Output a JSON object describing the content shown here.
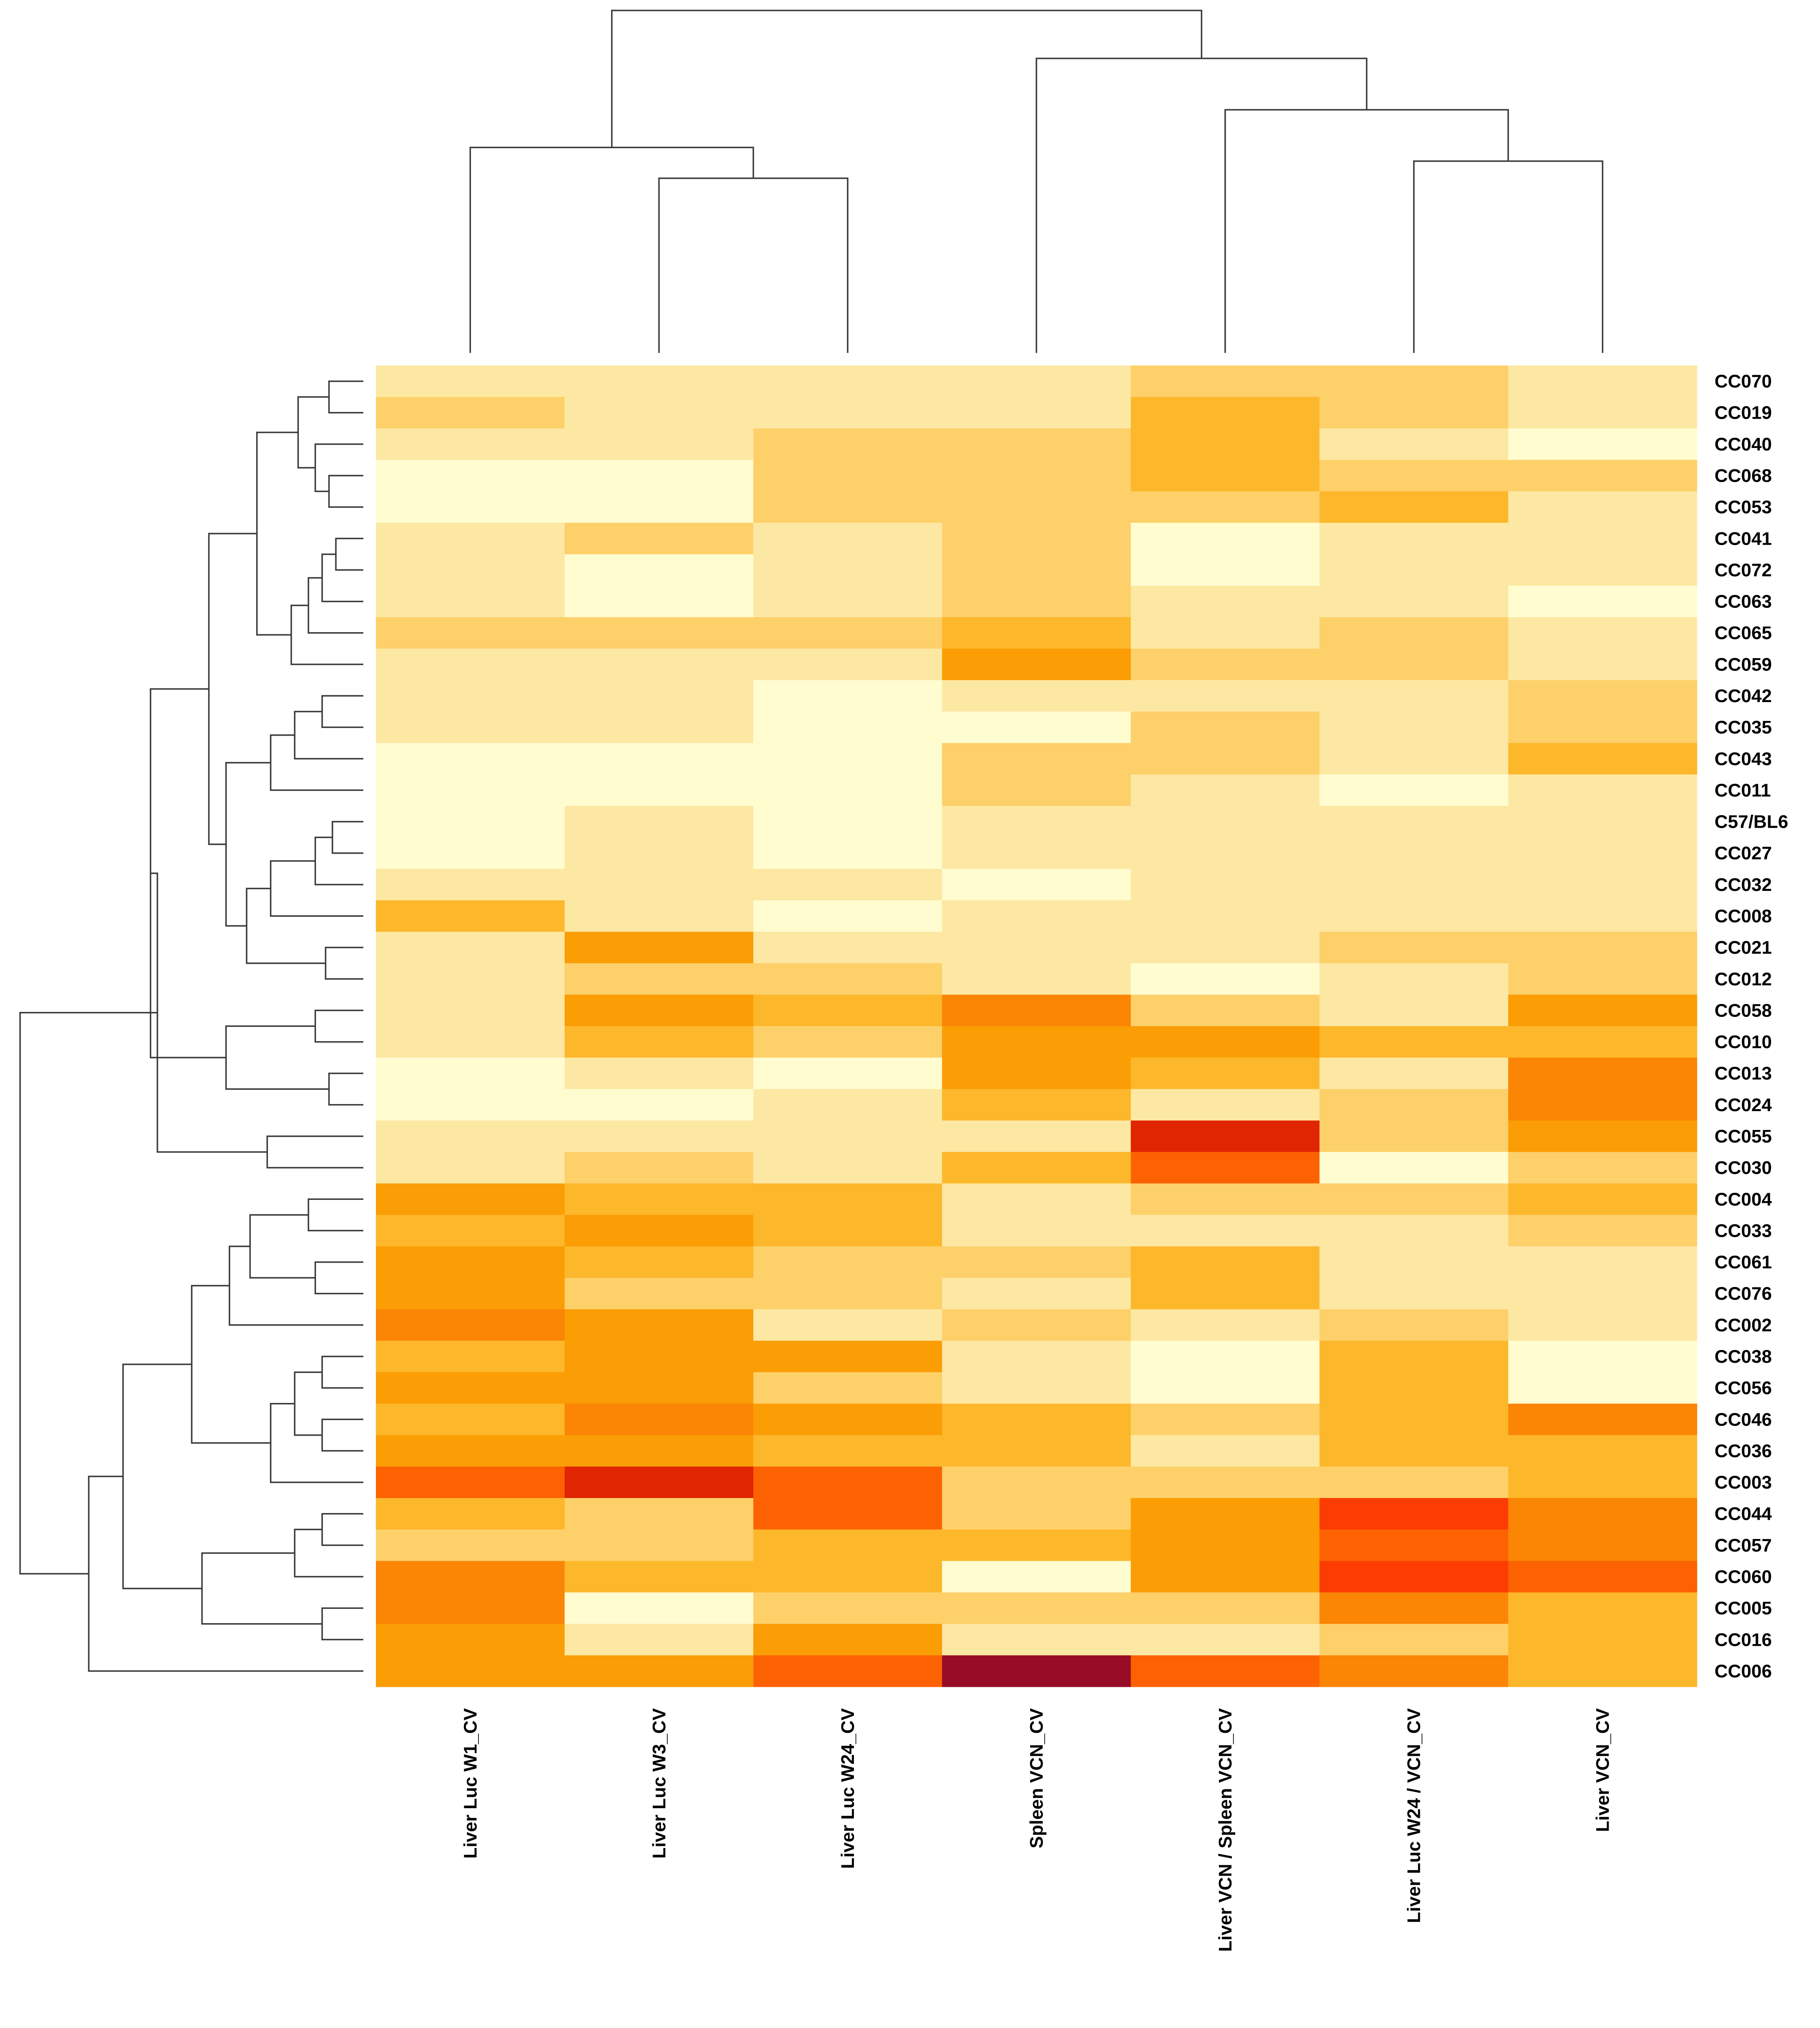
{
  "chart_data": {
    "type": "heatmap",
    "title": "",
    "color_scale": [
      "#fffcd0",
      "#fde8a3",
      "#fdd06a",
      "#fdb72b",
      "#fb9d05",
      "#fb8505",
      "#fc6202",
      "#fc3c02",
      "#e02502",
      "#980d26"
    ],
    "columns": [
      "Liver Luc W1_CV",
      "Liver Luc W3_CV",
      "Liver Luc W24_CV",
      "Spleen VCN_CV",
      "Liver VCN / Spleen VCN_CV",
      "Liver Luc W24 / VCN_CV",
      "Liver VCN_CV"
    ],
    "rows": [
      "CC070",
      "CC019",
      "CC040",
      "CC068",
      "CC053",
      "CC041",
      "CC072",
      "CC063",
      "CC065",
      "CC059",
      "CC042",
      "CC035",
      "CC043",
      "CC011",
      "C57/BL6",
      "CC027",
      "CC032",
      "CC008",
      "CC021",
      "CC012",
      "CC058",
      "CC010",
      "CC013",
      "CC024",
      "CC055",
      "CC030",
      "CC004",
      "CC033",
      "CC061",
      "CC076",
      "CC002",
      "CC038",
      "CC056",
      "CC046",
      "CC036",
      "CC003",
      "CC044",
      "CC057",
      "CC060",
      "CC005",
      "CC016",
      "CC006"
    ],
    "values": [
      [
        1.5,
        1.5,
        1.5,
        1.5,
        2.5,
        2.5,
        1.5
      ],
      [
        2.5,
        1.5,
        1.5,
        1.5,
        3.5,
        2.5,
        1.5
      ],
      [
        1.5,
        1.5,
        2.5,
        2.5,
        3.5,
        1.5,
        0.7
      ],
      [
        0.8,
        0.8,
        2.5,
        2.5,
        3.5,
        2.5,
        2.5
      ],
      [
        0.8,
        0.8,
        2.5,
        2.5,
        2.5,
        3.5,
        1.5
      ],
      [
        1.5,
        2.5,
        1.5,
        2.5,
        0.7,
        1.5,
        1.5
      ],
      [
        1.5,
        0.7,
        1.5,
        2.5,
        0.7,
        1.5,
        1.5
      ],
      [
        1.5,
        0.7,
        1.5,
        2.5,
        1.5,
        1.5,
        0.7
      ],
      [
        2.5,
        2.5,
        2.5,
        3.5,
        1.5,
        2.5,
        1.5
      ],
      [
        1.5,
        1.5,
        1.5,
        4.5,
        2.5,
        2.5,
        1.5
      ],
      [
        1.5,
        1.5,
        0.8,
        1.5,
        1.5,
        1.5,
        2.5
      ],
      [
        1.5,
        1.5,
        0.8,
        0.8,
        2.5,
        1.5,
        2.5
      ],
      [
        0.2,
        0.8,
        0.8,
        2.5,
        2.5,
        1.5,
        3.5
      ],
      [
        0.2,
        0.8,
        0.8,
        2.5,
        1.5,
        0.2,
        1.0
      ],
      [
        0.8,
        1.5,
        0.8,
        1.5,
        1.5,
        1.5,
        1.0
      ],
      [
        0.8,
        1.5,
        0.8,
        1.5,
        1.0,
        1.0,
        1.0
      ],
      [
        1.5,
        1.5,
        1.5,
        0.8,
        1.5,
        1.5,
        1.0
      ],
      [
        3.5,
        1.5,
        0.8,
        1.5,
        1.5,
        1.0,
        1.0
      ],
      [
        1.5,
        4.5,
        1.5,
        1.5,
        1.5,
        2.5,
        2.5
      ],
      [
        1.5,
        2.5,
        2.5,
        1.5,
        0.7,
        1.5,
        2.5
      ],
      [
        1.5,
        4.5,
        3.5,
        5.5,
        2.5,
        1.5,
        4.5
      ],
      [
        1.5,
        3.5,
        2.5,
        4.5,
        4.5,
        3.5,
        3.5
      ],
      [
        0.8,
        1.5,
        0.2,
        4.5,
        3.5,
        1.5,
        5.5
      ],
      [
        0.8,
        0.8,
        1.5,
        3.5,
        1.5,
        2.5,
        5.5
      ],
      [
        1.5,
        1.5,
        1.5,
        1.5,
        8.5,
        2.5,
        4.5
      ],
      [
        1.5,
        2.5,
        1.5,
        3.5,
        6.5,
        0.7,
        2.5
      ],
      [
        4.5,
        3.5,
        3.5,
        1.5,
        2.5,
        2.5,
        3.5
      ],
      [
        3.5,
        4.5,
        3.5,
        1.5,
        1.5,
        1.5,
        2.5
      ],
      [
        4.5,
        3.5,
        2.5,
        2.5,
        3.5,
        1.5,
        1.5
      ],
      [
        4.5,
        2.5,
        2.5,
        1.5,
        3.5,
        1.5,
        1.5
      ],
      [
        5.5,
        4.5,
        1.5,
        2.5,
        1.5,
        2.5,
        1.5
      ],
      [
        3.5,
        4.5,
        4.5,
        1.5,
        0.2,
        3.5,
        0.8
      ],
      [
        4.5,
        4.5,
        2.5,
        1.5,
        0.7,
        3.5,
        0.8
      ],
      [
        3.5,
        5.5,
        4.5,
        3.5,
        2.5,
        3.5,
        5.5
      ],
      [
        4.5,
        4.5,
        3.5,
        3.5,
        1.5,
        3.5,
        3.5
      ],
      [
        6.5,
        8.5,
        6.5,
        2.5,
        2.5,
        2.5,
        3.5
      ],
      [
        3.5,
        2.5,
        6.5,
        2.5,
        4.5,
        7.5,
        5.5
      ],
      [
        2.5,
        2.5,
        3.5,
        3.5,
        4.5,
        6.5,
        5.5
      ],
      [
        5.5,
        3.5,
        3.5,
        0.7,
        4.5,
        7.5,
        6.5
      ],
      [
        5.5,
        0.7,
        2.5,
        2.5,
        2.5,
        5.5,
        3.5
      ],
      [
        4.5,
        1.5,
        4.5,
        1.5,
        1.5,
        2.5,
        3.5
      ],
      [
        4.5,
        4.5,
        6.5,
        9.5,
        6.5,
        5.5,
        3.5
      ]
    ],
    "column_dendrogram": {
      "leaf_order": [
        "Liver Luc W1_CV",
        "Liver Luc W3_CV",
        "Liver Luc W24_CV",
        "Spleen VCN_CV",
        "Liver VCN / Spleen VCN_CV",
        "Liver Luc W24 / VCN_CV",
        "Liver VCN_CV"
      ],
      "merges": [
        {
          "a": 1,
          "b": 2,
          "height": 0.51
        },
        {
          "a": 5,
          "b": 6,
          "height": 0.56
        },
        {
          "a": 0,
          "b": -1,
          "height": 0.6
        },
        {
          "a": 4,
          "b": -2,
          "height": 0.71
        },
        {
          "a": 3,
          "b": -4,
          "height": 0.86
        },
        {
          "a": -3,
          "b": -5,
          "height": 1.0
        }
      ]
    },
    "row_dendrogram": {
      "merges": [
        {
          "a": 0,
          "b": 1,
          "height": 0.1
        },
        {
          "a": 3,
          "b": 4,
          "height": 0.1
        },
        {
          "a": 2,
          "b": -2,
          "height": 0.14
        },
        {
          "a": -1,
          "b": -3,
          "height": 0.19
        },
        {
          "a": 5,
          "b": 6,
          "height": 0.08
        },
        {
          "a": -5,
          "b": 7,
          "height": 0.12
        },
        {
          "a": -6,
          "b": 8,
          "height": 0.16
        },
        {
          "a": -7,
          "b": 9,
          "height": 0.21
        },
        {
          "a": -4,
          "b": -8,
          "height": 0.31
        },
        {
          "a": 10,
          "b": 11,
          "height": 0.12
        },
        {
          "a": -10,
          "b": 12,
          "height": 0.2
        },
        {
          "a": -11,
          "b": 13,
          "height": 0.27
        },
        {
          "a": 14,
          "b": 15,
          "height": 0.09
        },
        {
          "a": -13,
          "b": 16,
          "height": 0.14
        },
        {
          "a": -14,
          "b": 17,
          "height": 0.27
        },
        {
          "a": 18,
          "b": 19,
          "height": 0.11
        },
        {
          "a": -15,
          "b": -16,
          "height": 0.34
        },
        {
          "a": -12,
          "b": -17,
          "height": 0.4
        },
        {
          "a": -9,
          "b": -18,
          "height": 0.45
        },
        {
          "a": 20,
          "b": 21,
          "height": 0.14
        },
        {
          "a": 22,
          "b": 23,
          "height": 0.1
        },
        {
          "a": -20,
          "b": -21,
          "height": 0.4
        },
        {
          "a": -19,
          "b": -22,
          "height": 0.62
        },
        {
          "a": 24,
          "b": 25,
          "height": 0.28
        },
        {
          "a": -23,
          "b": -24,
          "height": 0.6
        },
        {
          "a": 26,
          "b": 27,
          "height": 0.16
        },
        {
          "a": 28,
          "b": 29,
          "height": 0.14
        },
        {
          "a": -26,
          "b": -27,
          "height": 0.33
        },
        {
          "a": -28,
          "b": 30,
          "height": 0.39
        },
        {
          "a": 31,
          "b": 32,
          "height": 0.12
        },
        {
          "a": 33,
          "b": 34,
          "height": 0.12
        },
        {
          "a": -30,
          "b": -31,
          "height": 0.2
        },
        {
          "a": -32,
          "b": 35,
          "height": 0.27
        },
        {
          "a": -29,
          "b": -33,
          "height": 0.5
        },
        {
          "a": 36,
          "b": 37,
          "height": 0.12
        },
        {
          "a": -35,
          "b": 38,
          "height": 0.2
        },
        {
          "a": 39,
          "b": 40,
          "height": 0.12
        },
        {
          "a": -36,
          "b": -37,
          "height": 0.47
        },
        {
          "a": -34,
          "b": -38,
          "height": 0.7
        },
        {
          "a": -39,
          "b": 41,
          "height": 0.8
        },
        {
          "a": -25,
          "b": -40,
          "height": 1.0
        }
      ]
    }
  }
}
